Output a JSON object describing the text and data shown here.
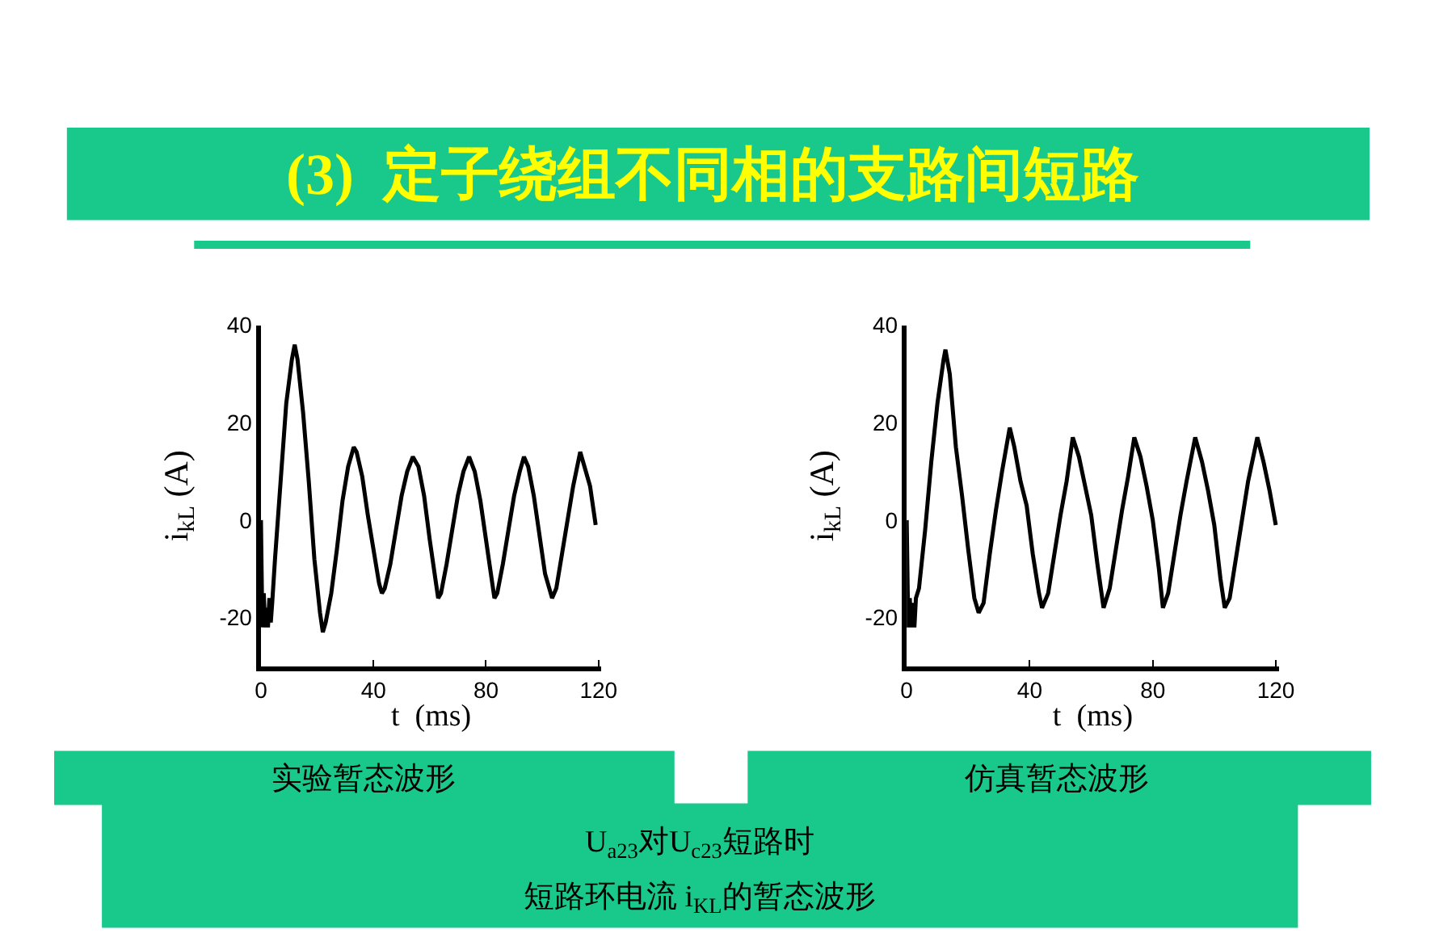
{
  "chart_data": [
    {
      "type": "line",
      "title": "(3)  定子绕组不同相的支路间短路",
      "xlabel": "t  (ms)",
      "ylabel": "i$_{kL}$ (A)",
      "color": "#000000",
      "line_style": "solid",
      "legend": false,
      "x": [
        0,
        0.5,
        1,
        1.5,
        2,
        2.5,
        3,
        3.5,
        4,
        5,
        7,
        9,
        11,
        12,
        13,
        15,
        17,
        19,
        21,
        22,
        23,
        25,
        27,
        29,
        31,
        33,
        34,
        36,
        38,
        40,
        42,
        43,
        44,
        46,
        48,
        50,
        52,
        54,
        56,
        58,
        60,
        62,
        63,
        64,
        66,
        68,
        70,
        72,
        74,
        76,
        78,
        80,
        82,
        83,
        84,
        86,
        88,
        90,
        92,
        93.5,
        95,
        97,
        99,
        101,
        103.5,
        105,
        107,
        109,
        111,
        113.5,
        115,
        117,
        119
      ],
      "values": [
        0,
        -22,
        -15,
        -22,
        -18,
        -22,
        -16,
        -21,
        -17,
        -8,
        8,
        24,
        33,
        36,
        33,
        22,
        8,
        -8,
        -19,
        -23,
        -21,
        -15,
        -6,
        4,
        11,
        15,
        14,
        9,
        1,
        -6,
        -13,
        -15,
        -14,
        -9,
        -2,
        5,
        10,
        13,
        11,
        5,
        -4,
        -12,
        -16,
        -15,
        -9,
        -2,
        5,
        10,
        13,
        10,
        4,
        -4,
        -12,
        -16,
        -15,
        -9,
        -2,
        5,
        10,
        13,
        11,
        5,
        -3,
        -11,
        -16,
        -14,
        -7,
        0,
        7,
        14,
        11,
        7,
        -1
      ],
      "xlim": [
        0,
        121
      ],
      "ylim": [
        -30,
        40
      ],
      "xticks": [
        0,
        40,
        80,
        120
      ],
      "yticks": [
        -20,
        0,
        20,
        40
      ],
      "annotations": [
        "实验暂态波形"
      ]
    },
    {
      "type": "line",
      "xlabel": "t  (ms)",
      "ylabel": "i$_{kL}$ (A)",
      "color": "#000000",
      "line_style": "solid",
      "legend": false,
      "x": [
        0,
        0.5,
        1,
        1.5,
        2,
        2.5,
        3,
        4,
        6,
        8,
        10,
        12,
        12.6,
        14,
        16,
        18,
        20,
        22,
        23.4,
        25,
        27,
        29,
        31,
        33.5,
        35,
        37,
        39,
        41,
        43,
        44,
        46,
        48,
        50,
        52,
        54,
        56,
        58,
        60,
        62,
        64,
        66,
        68,
        70,
        72,
        74,
        76,
        78,
        80,
        82,
        83.3,
        85,
        87,
        89,
        91,
        93.8,
        96,
        98,
        100,
        102,
        103.4,
        105,
        107,
        109,
        111,
        114,
        116,
        118,
        120
      ],
      "values": [
        0,
        -22,
        -16,
        -22,
        -17,
        -22,
        -16,
        -14,
        -2,
        12,
        24,
        33,
        35,
        30,
        15,
        5,
        -6,
        -16,
        -19,
        -17,
        -7,
        2,
        10,
        19,
        15,
        8,
        3,
        -7,
        -15,
        -18,
        -15,
        -7,
        1,
        8,
        17,
        13,
        7,
        1,
        -9,
        -18,
        -14,
        -6,
        2,
        9,
        17,
        13,
        7,
        0,
        -10,
        -18,
        -15,
        -7,
        1,
        8,
        17,
        12,
        6,
        -1,
        -12,
        -18,
        -16,
        -8,
        0,
        8,
        17,
        12,
        6,
        -1
      ],
      "xlim": [
        0,
        121
      ],
      "ylim": [
        -30,
        40
      ],
      "xticks": [
        0,
        40,
        80,
        120
      ],
      "yticks": [
        -20,
        0,
        20,
        40
      ],
      "annotations": [
        "仿真暂态波形",
        "U$_{a23}$对U$_{c23}$短路时",
        "短路环电流 i$_{KL}$的暂态波形"
      ]
    }
  ]
}
